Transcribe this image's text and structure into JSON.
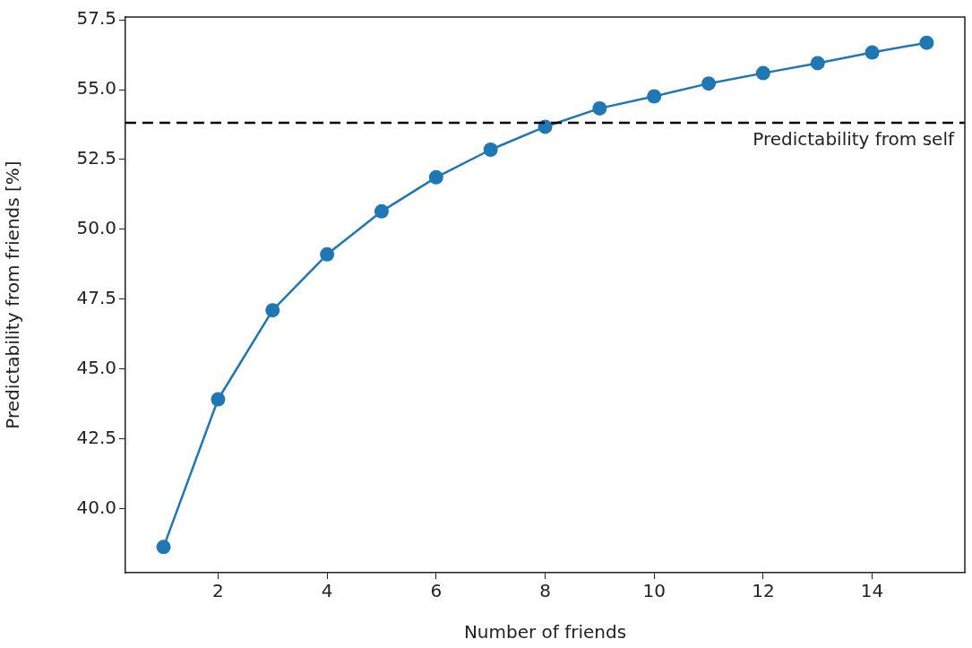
{
  "chart_data": {
    "type": "line",
    "xlabel": "Number of friends",
    "ylabel": "Predictability from friends [%]",
    "x": [
      1,
      2,
      3,
      4,
      5,
      6,
      7,
      8,
      9,
      10,
      11,
      12,
      13,
      14,
      15
    ],
    "series": [
      {
        "color": "#1f77b4",
        "values": [
          38.62,
          43.91,
          47.1,
          49.1,
          50.64,
          51.86,
          52.85,
          53.67,
          54.33,
          54.76,
          55.22,
          55.59,
          55.95,
          56.33,
          56.68
        ]
      }
    ],
    "xlim": [
      0.3,
      15.7
    ],
    "xticks": [
      2,
      4,
      6,
      8,
      10,
      12,
      14
    ],
    "ylim": [
      37.7,
      57.6
    ],
    "yticks": [
      {
        "value": 40,
        "label": "40.0"
      },
      {
        "value": 42.5,
        "label": "42.5"
      },
      {
        "value": 45,
        "label": "45.0"
      },
      {
        "value": 47.5,
        "label": "47.5"
      },
      {
        "value": 50,
        "label": "50.0"
      },
      {
        "value": 52.5,
        "label": "52.5"
      },
      {
        "value": 55,
        "label": "55.0"
      },
      {
        "value": 57.5,
        "label": "57.5"
      }
    ],
    "ref_lines": [
      {
        "axis": "y",
        "value": 53.81,
        "label": "Predictability from self",
        "color": "#000000",
        "line_style": "dashed"
      }
    ],
    "marker": "circle",
    "line_style": "solid",
    "grid": false,
    "legend": false
  }
}
